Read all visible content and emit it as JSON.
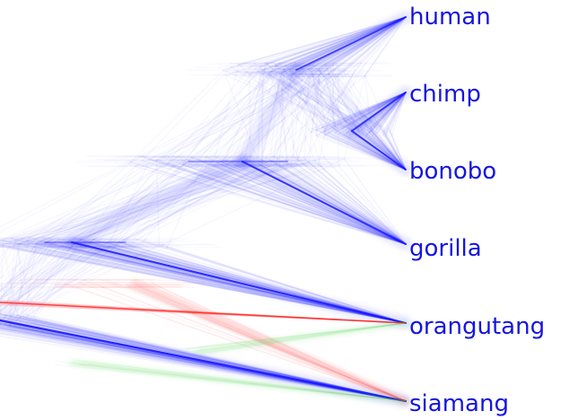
{
  "taxa": [
    {
      "id": "human",
      "label": "human"
    },
    {
      "id": "chimp",
      "label": "chimp"
    },
    {
      "id": "bonobo",
      "label": "bonobo"
    },
    {
      "id": "gorilla",
      "label": "gorilla"
    },
    {
      "id": "orangutang",
      "label": "orangutang"
    },
    {
      "id": "siamang",
      "label": "siamang"
    }
  ],
  "colors": {
    "label": "#1515e0",
    "main_topology": "#1a1aff",
    "alt_topology_a": "#ff2020",
    "alt_topology_b": "#40d040"
  }
}
